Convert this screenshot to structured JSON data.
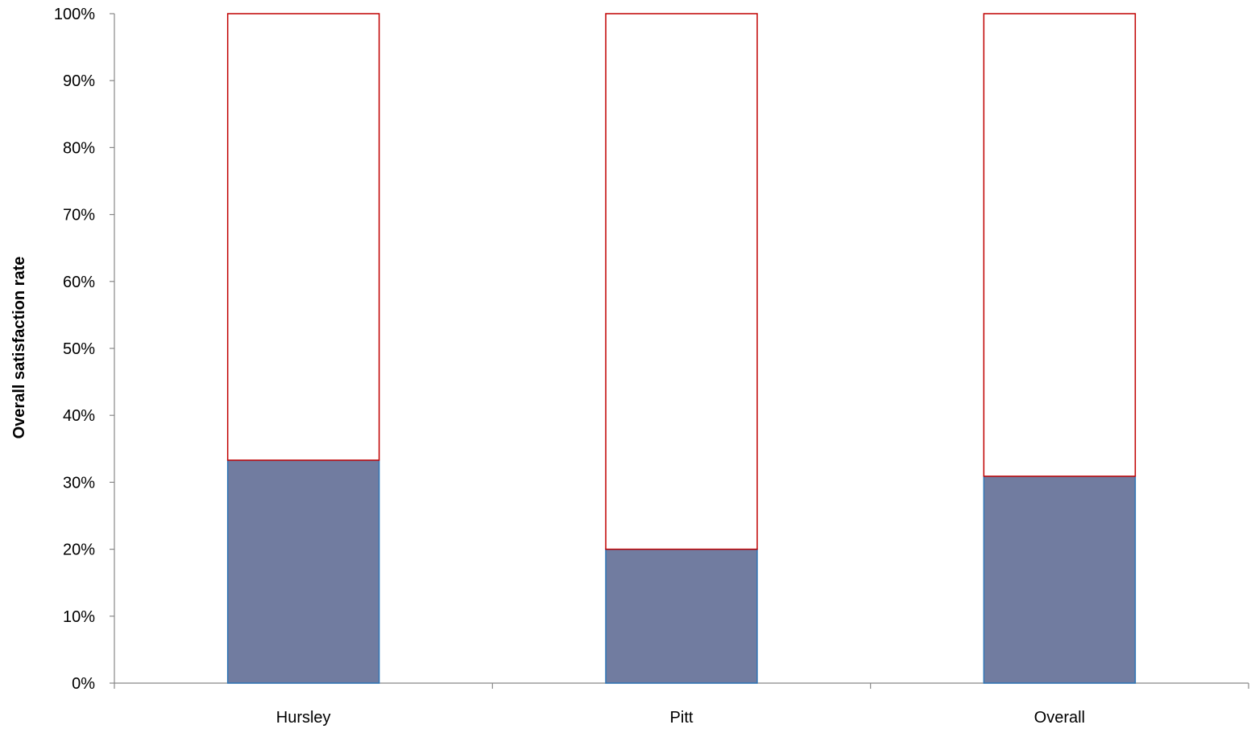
{
  "chart_data": {
    "type": "bar",
    "stacked": true,
    "title": "",
    "xlabel": "",
    "ylabel": "Overall satisfaction rate",
    "ylim": [
      0,
      100
    ],
    "y_ticks": [
      "0%",
      "10%",
      "20%",
      "30%",
      "40%",
      "50%",
      "60%",
      "70%",
      "80%",
      "90%",
      "100%"
    ],
    "categories": [
      "Hursley",
      "Pitt",
      "Overall"
    ],
    "series": [
      {
        "values": [
          33.3,
          20.0,
          30.9
        ],
        "color": "#717ca0",
        "stroke": "#2e75b6"
      },
      {
        "values": [
          66.7,
          80.0,
          69.1
        ],
        "color": "#ffffff",
        "stroke": "#c00000"
      }
    ],
    "grid": false,
    "legend": "none",
    "axis_color": "#888888"
  }
}
